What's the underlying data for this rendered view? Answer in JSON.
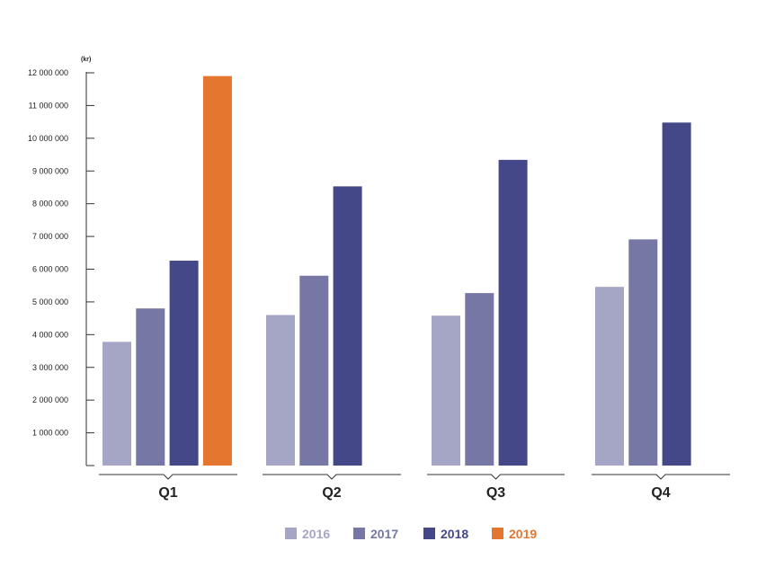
{
  "chart_data": {
    "type": "bar",
    "unit_label": "(kr)",
    "categories": [
      "Q1",
      "Q2",
      "Q3",
      "Q4"
    ],
    "series": [
      {
        "name": "2016",
        "color": "#a5a5c6",
        "values": [
          3780000,
          4600000,
          4580000,
          5460000
        ]
      },
      {
        "name": "2017",
        "color": "#7677a5",
        "values": [
          4800000,
          5800000,
          5270000,
          6910000
        ]
      },
      {
        "name": "2018",
        "color": "#444888",
        "values": [
          6260000,
          8530000,
          9340000,
          10480000
        ]
      },
      {
        "name": "2019",
        "color": "#e4762f",
        "values": [
          11900000,
          null,
          null,
          null
        ]
      }
    ],
    "ylim": [
      0,
      12000000
    ],
    "yticks": [
      {
        "value": 1000000,
        "label": "1 000 000"
      },
      {
        "value": 2000000,
        "label": "2 000 000"
      },
      {
        "value": 3000000,
        "label": "3 000 000"
      },
      {
        "value": 4000000,
        "label": "4 000 000"
      },
      {
        "value": 5000000,
        "label": "5 000 000"
      },
      {
        "value": 6000000,
        "label": "6 000 000"
      },
      {
        "value": 7000000,
        "label": "7 000 000"
      },
      {
        "value": 8000000,
        "label": "8 000 000"
      },
      {
        "value": 9000000,
        "label": "9 000 000"
      },
      {
        "value": 10000000,
        "label": "10 000 000"
      },
      {
        "value": 11000000,
        "label": "11 000 000"
      },
      {
        "value": 12000000,
        "label": "12 000 000"
      }
    ],
    "legend_position": "bottom-center",
    "grid": false
  }
}
